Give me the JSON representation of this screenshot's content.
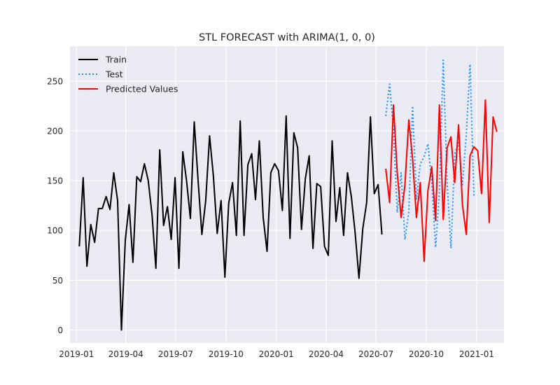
{
  "chart_data": {
    "type": "line",
    "title": "STL FORECAST with ARIMA(1, 0, 0)",
    "xlabel": "",
    "ylabel": "",
    "x_ticks": [
      "2019-01",
      "2019-04",
      "2019-07",
      "2019-10",
      "2020-01",
      "2020-04",
      "2020-07",
      "2020-10",
      "2021-01"
    ],
    "y_ticks": [
      0,
      50,
      100,
      150,
      200,
      250
    ],
    "xlim": [
      "2018-12-20",
      "2021-02-20"
    ],
    "ylim": [
      -13,
      285
    ],
    "grid": true,
    "legend_position": "top-left",
    "series": [
      {
        "name": "Train",
        "color": "#000000",
        "style": "solid",
        "x": [
          "2019-01-06",
          "2019-01-13",
          "2019-01-20",
          "2019-01-27",
          "2019-02-03",
          "2019-02-10",
          "2019-02-17",
          "2019-02-24",
          "2019-03-03",
          "2019-03-10",
          "2019-03-17",
          "2019-03-24",
          "2019-03-31",
          "2019-04-07",
          "2019-04-14",
          "2019-04-21",
          "2019-04-28",
          "2019-05-05",
          "2019-05-12",
          "2019-05-19",
          "2019-05-26",
          "2019-06-02",
          "2019-06-09",
          "2019-06-16",
          "2019-06-23",
          "2019-06-30",
          "2019-07-07",
          "2019-07-14",
          "2019-07-21",
          "2019-07-28",
          "2019-08-04",
          "2019-08-11",
          "2019-08-18",
          "2019-08-25",
          "2019-09-01",
          "2019-09-08",
          "2019-09-15",
          "2019-09-22",
          "2019-09-29",
          "2019-10-06",
          "2019-10-13",
          "2019-10-20",
          "2019-10-27",
          "2019-11-03",
          "2019-11-10",
          "2019-11-17",
          "2019-11-24",
          "2019-12-01",
          "2019-12-08",
          "2019-12-15",
          "2019-12-22",
          "2019-12-29",
          "2020-01-05",
          "2020-01-12",
          "2020-01-19",
          "2020-01-26",
          "2020-02-02",
          "2020-02-09",
          "2020-02-16",
          "2020-02-23",
          "2020-03-01",
          "2020-03-08",
          "2020-03-15",
          "2020-03-22",
          "2020-03-29",
          "2020-04-05",
          "2020-04-12",
          "2020-04-19",
          "2020-04-26",
          "2020-05-03",
          "2020-05-10",
          "2020-05-17",
          "2020-05-24",
          "2020-05-31",
          "2020-06-07",
          "2020-06-14",
          "2020-06-21",
          "2020-06-28",
          "2020-07-05",
          "2020-07-12"
        ],
        "values": [
          84,
          153,
          64,
          106,
          88,
          122,
          122,
          134,
          121,
          158,
          130,
          0,
          90,
          126,
          68,
          154,
          149,
          167,
          150,
          115,
          62,
          181,
          105,
          124,
          91,
          153,
          62,
          179,
          150,
          112,
          209,
          150,
          96,
          130,
          195,
          155,
          97,
          130,
          53,
          127,
          148,
          95,
          210,
          95,
          166,
          177,
          131,
          190,
          113,
          79,
          158,
          167,
          160,
          120,
          215,
          92,
          198,
          183,
          101,
          152,
          175,
          82,
          147,
          144,
          84,
          75,
          190,
          109,
          143,
          95,
          158,
          134,
          98,
          52,
          102,
          128,
          214,
          137,
          146,
          96
        ]
      },
      {
        "name": "Test",
        "color": "#1e90ff",
        "style": "dotted",
        "x": [
          "2020-07-19",
          "2020-07-26",
          "2020-08-02",
          "2020-08-09",
          "2020-08-16",
          "2020-08-23",
          "2020-08-30",
          "2020-09-06",
          "2020-09-13",
          "2020-09-20",
          "2020-09-27",
          "2020-10-04",
          "2020-10-11",
          "2020-10-18",
          "2020-10-25",
          "2020-11-01",
          "2020-11-08",
          "2020-11-15",
          "2020-11-22",
          "2020-11-29",
          "2020-12-06",
          "2020-12-13",
          "2020-12-20",
          "2020-12-27"
        ],
        "values": [
          215,
          247,
          201,
          118,
          158,
          91,
          119,
          225,
          131,
          167,
          174,
          187,
          148,
          83,
          139,
          271,
          149,
          82,
          177,
          188,
          146,
          196,
          267,
          135
        ]
      },
      {
        "name": "Predicted Values",
        "color": "#ff0000",
        "style": "solid",
        "x": [
          "2020-07-19",
          "2020-07-26",
          "2020-08-02",
          "2020-08-09",
          "2020-08-16",
          "2020-08-23",
          "2020-08-30",
          "2020-09-06",
          "2020-09-13",
          "2020-09-20",
          "2020-09-27",
          "2020-10-04",
          "2020-10-11",
          "2020-10-18",
          "2020-10-25",
          "2020-11-01",
          "2020-11-08",
          "2020-11-15",
          "2020-11-22",
          "2020-11-29",
          "2020-12-06",
          "2020-12-13",
          "2020-12-20",
          "2020-12-27",
          "2021-01-03",
          "2021-01-10",
          "2021-01-17",
          "2021-01-24",
          "2021-01-31",
          "2021-02-07"
        ],
        "values": [
          162,
          128,
          226,
          158,
          113,
          146,
          211,
          172,
          113,
          148,
          69,
          140,
          164,
          110,
          226,
          111,
          183,
          194,
          148,
          206,
          126,
          96,
          175,
          184,
          180,
          137,
          231,
          108,
          214,
          199
        ]
      }
    ]
  }
}
